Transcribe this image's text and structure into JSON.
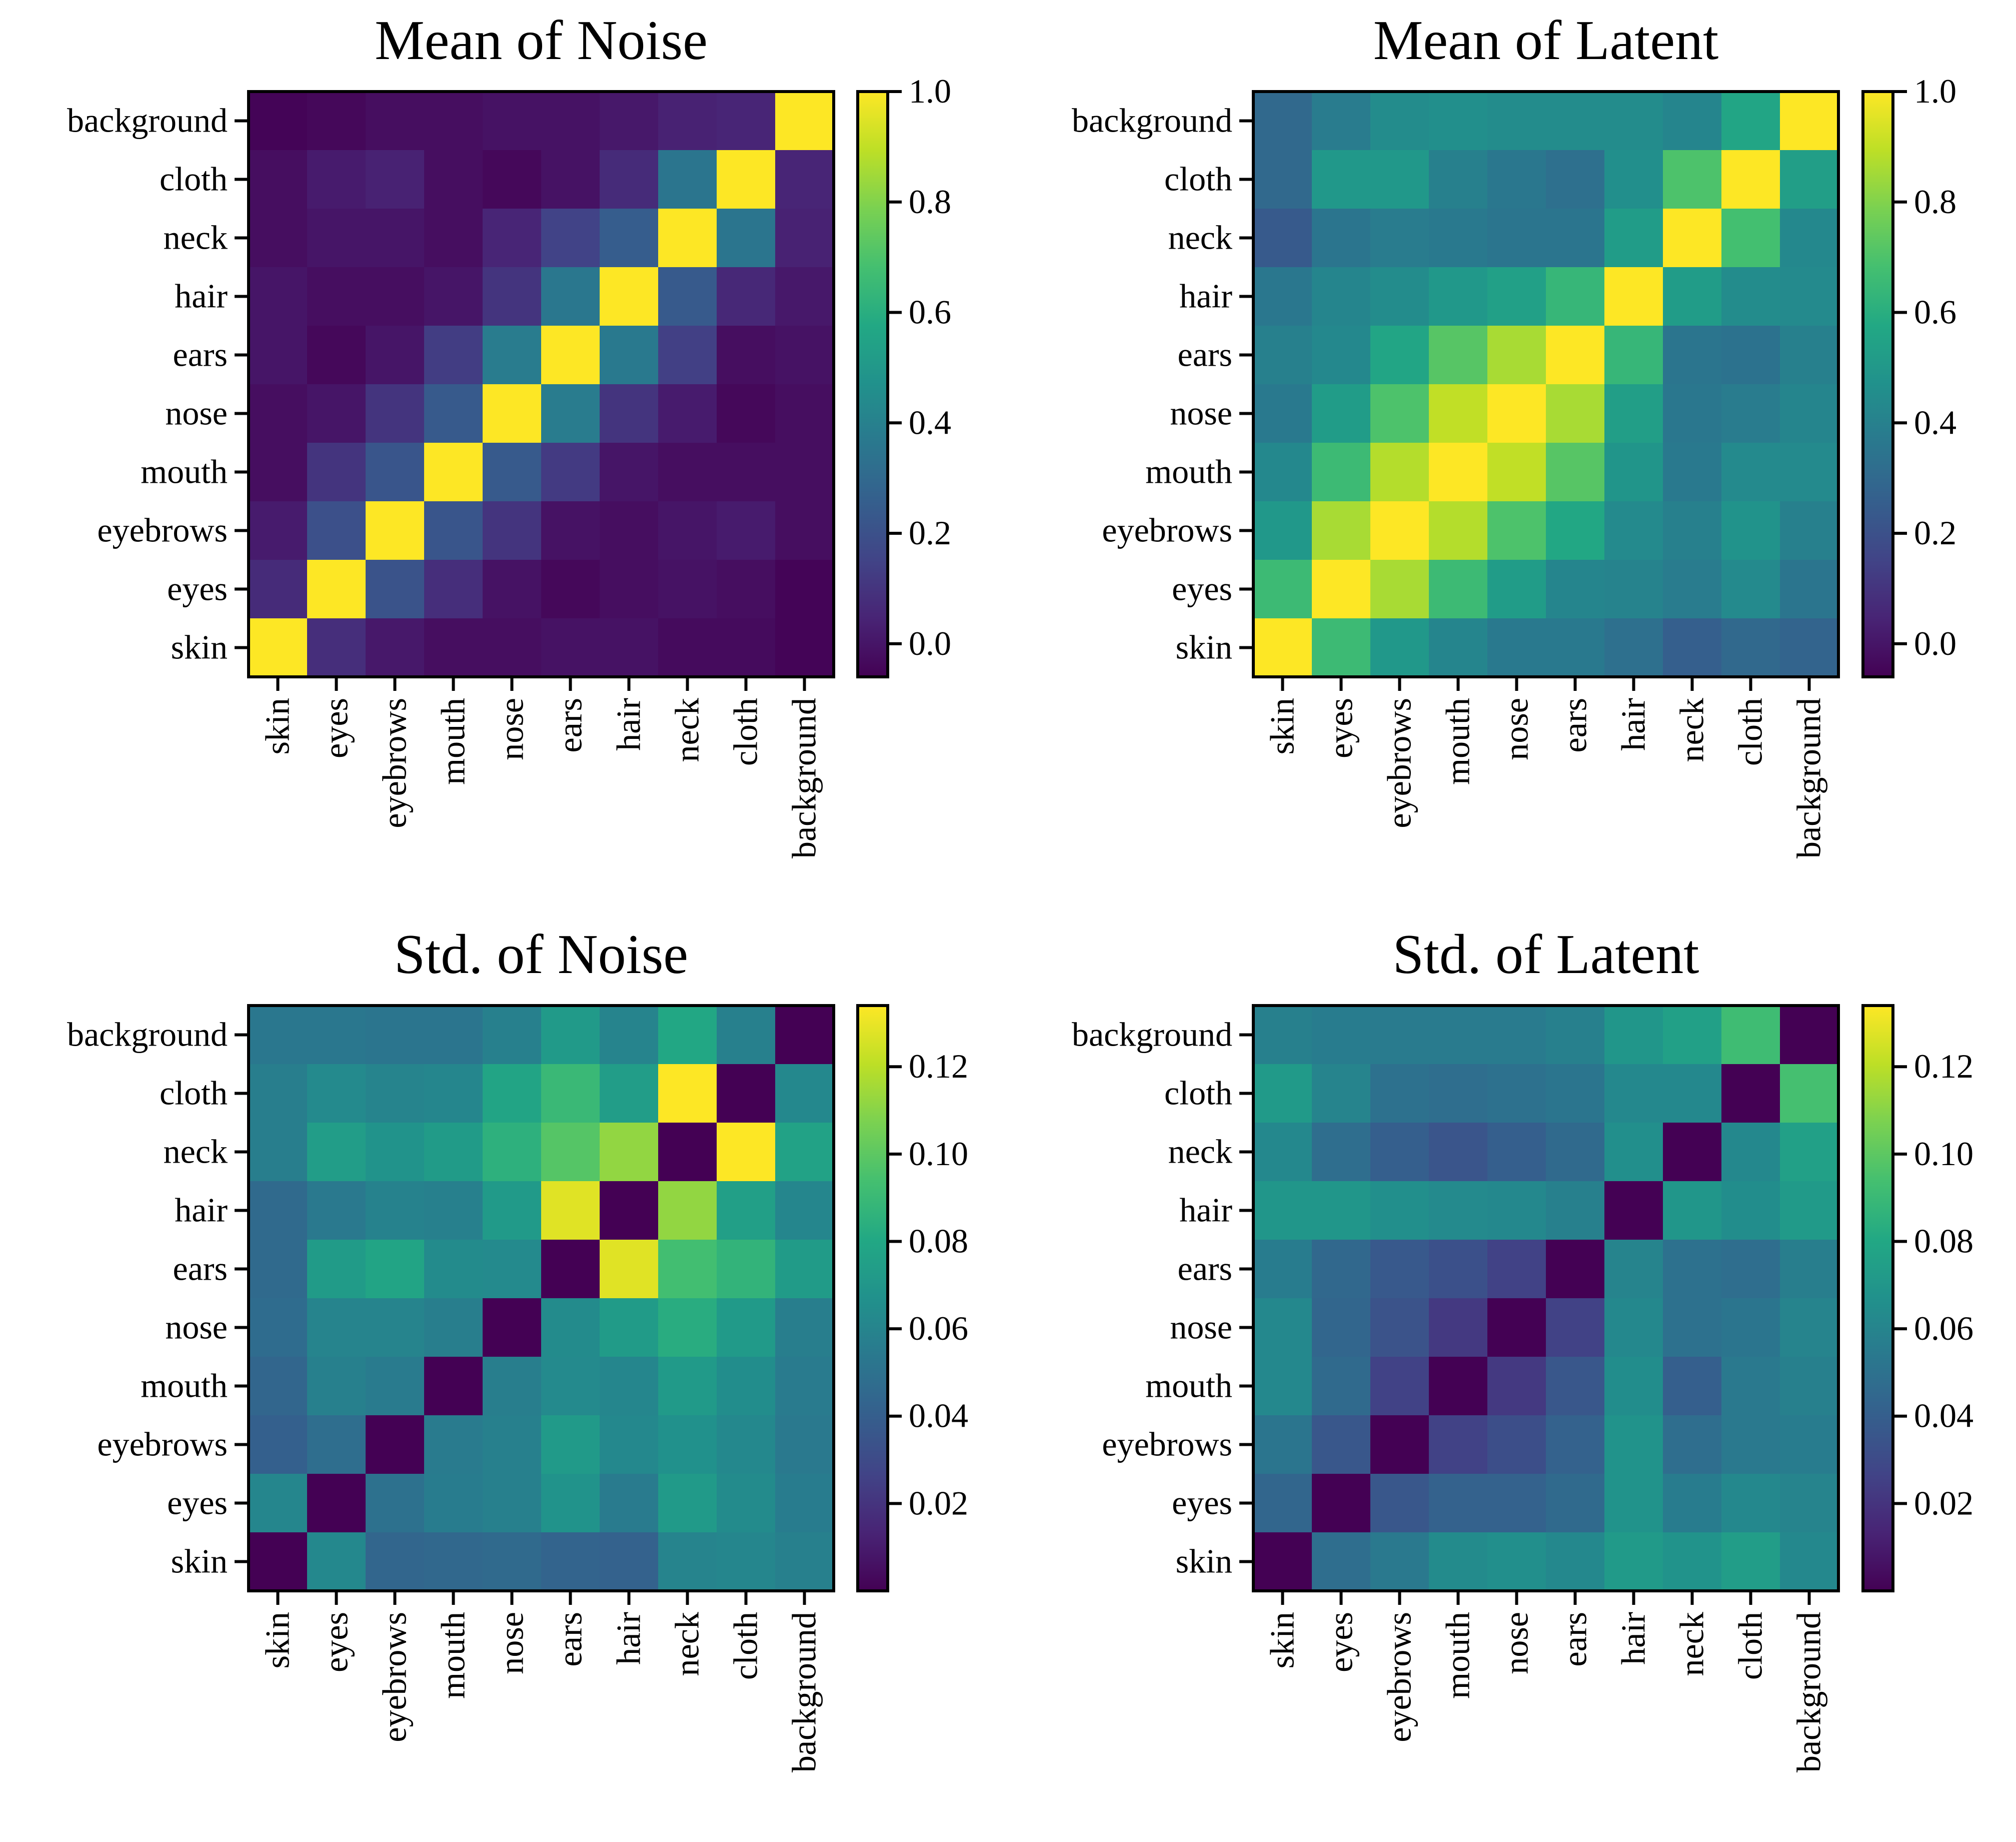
{
  "colormap": "viridis",
  "frame_color": "#000000",
  "categories": [
    "skin",
    "eyes",
    "eyebrows",
    "mouth",
    "nose",
    "ears",
    "hair",
    "neck",
    "cloth",
    "background"
  ],
  "chart_data": [
    {
      "type": "heatmap",
      "title": "Mean of Noise",
      "xlabel": "",
      "ylabel": "",
      "x_categories": [
        "skin",
        "eyes",
        "eyebrows",
        "mouth",
        "nose",
        "ears",
        "hair",
        "neck",
        "cloth",
        "background"
      ],
      "y_categories_top_to_bottom": [
        "background",
        "cloth",
        "neck",
        "hair",
        "ears",
        "nose",
        "mouth",
        "eyebrows",
        "eyes",
        "skin"
      ],
      "vmin": -0.06,
      "vmax": 1.0,
      "colorbar_ticks": [
        0.0,
        0.2,
        0.4,
        0.6,
        0.8,
        1.0
      ],
      "colorbar_labels": [
        "0.0",
        "0.2",
        "0.4",
        "0.6",
        "0.8",
        "1.0"
      ],
      "values": [
        [
          -0.05,
          -0.04,
          -0.02,
          -0.02,
          -0.01,
          -0.01,
          0.01,
          0.04,
          0.05,
          1.0
        ],
        [
          -0.02,
          0.02,
          0.04,
          -0.02,
          -0.04,
          -0.01,
          0.07,
          0.35,
          1.0,
          0.05
        ],
        [
          -0.02,
          0.0,
          0.0,
          -0.02,
          0.05,
          0.15,
          0.25,
          1.0,
          0.35,
          0.04
        ],
        [
          0.0,
          -0.02,
          -0.02,
          0.0,
          0.1,
          0.36,
          1.0,
          0.24,
          0.06,
          0.01
        ],
        [
          0.0,
          -0.04,
          0.0,
          0.13,
          0.38,
          1.0,
          0.37,
          0.14,
          -0.02,
          -0.01
        ],
        [
          -0.02,
          0.0,
          0.1,
          0.24,
          1.0,
          0.38,
          0.1,
          0.02,
          -0.04,
          -0.02
        ],
        [
          -0.02,
          0.1,
          0.22,
          1.0,
          0.24,
          0.12,
          0.0,
          -0.02,
          -0.02,
          -0.02
        ],
        [
          0.02,
          0.2,
          1.0,
          0.22,
          0.1,
          -0.01,
          -0.02,
          0.0,
          0.02,
          -0.02
        ],
        [
          0.07,
          1.0,
          0.21,
          0.08,
          -0.01,
          -0.04,
          -0.02,
          -0.01,
          -0.02,
          -0.05
        ],
        [
          1.0,
          0.08,
          0.01,
          -0.02,
          -0.02,
          -0.01,
          -0.01,
          -0.03,
          -0.03,
          -0.05
        ]
      ]
    },
    {
      "type": "heatmap",
      "title": "Mean of Latent",
      "xlabel": "",
      "ylabel": "",
      "x_categories": [
        "skin",
        "eyes",
        "eyebrows",
        "mouth",
        "nose",
        "ears",
        "hair",
        "neck",
        "cloth",
        "background"
      ],
      "y_categories_top_to_bottom": [
        "background",
        "cloth",
        "neck",
        "hair",
        "ears",
        "nose",
        "mouth",
        "eyebrows",
        "eyes",
        "skin"
      ],
      "vmin": -0.06,
      "vmax": 1.0,
      "colorbar_ticks": [
        0.0,
        0.2,
        0.4,
        0.6,
        0.8,
        1.0
      ],
      "colorbar_labels": [
        "0.0",
        "0.2",
        "0.4",
        "0.6",
        "0.8",
        "1.0"
      ],
      "values": [
        [
          0.3,
          0.38,
          0.45,
          0.46,
          0.45,
          0.45,
          0.45,
          0.42,
          0.56,
          1.0
        ],
        [
          0.3,
          0.5,
          0.5,
          0.4,
          0.36,
          0.33,
          0.46,
          0.7,
          1.0,
          0.53
        ],
        [
          0.24,
          0.35,
          0.38,
          0.37,
          0.35,
          0.35,
          0.52,
          1.0,
          0.68,
          0.43
        ],
        [
          0.36,
          0.42,
          0.45,
          0.5,
          0.54,
          0.64,
          1.0,
          0.52,
          0.45,
          0.44
        ],
        [
          0.4,
          0.43,
          0.56,
          0.72,
          0.86,
          1.0,
          0.64,
          0.35,
          0.34,
          0.4
        ],
        [
          0.37,
          0.52,
          0.7,
          0.9,
          1.0,
          0.86,
          0.53,
          0.36,
          0.38,
          0.42
        ],
        [
          0.43,
          0.66,
          0.88,
          1.0,
          0.9,
          0.72,
          0.49,
          0.37,
          0.44,
          0.44
        ],
        [
          0.5,
          0.86,
          1.0,
          0.88,
          0.7,
          0.57,
          0.44,
          0.4,
          0.48,
          0.4
        ],
        [
          0.66,
          1.0,
          0.86,
          0.66,
          0.52,
          0.42,
          0.41,
          0.38,
          0.44,
          0.35
        ],
        [
          1.0,
          0.66,
          0.5,
          0.42,
          0.37,
          0.37,
          0.33,
          0.26,
          0.3,
          0.28
        ]
      ]
    },
    {
      "type": "heatmap",
      "title": "Std. of Noise",
      "xlabel": "",
      "ylabel": "",
      "x_categories": [
        "skin",
        "eyes",
        "eyebrows",
        "mouth",
        "nose",
        "ears",
        "hair",
        "neck",
        "cloth",
        "background"
      ],
      "y_categories_top_to_bottom": [
        "background",
        "cloth",
        "neck",
        "hair",
        "ears",
        "nose",
        "mouth",
        "eyebrows",
        "eyes",
        "skin"
      ],
      "vmin": 0.0,
      "vmax": 0.134,
      "colorbar_ticks": [
        0.02,
        0.04,
        0.06,
        0.08,
        0.1,
        0.12
      ],
      "colorbar_labels": [
        "0.02",
        "0.04",
        "0.06",
        "0.08",
        "0.10",
        "0.12"
      ],
      "values": [
        [
          0.053,
          0.053,
          0.052,
          0.052,
          0.058,
          0.072,
          0.06,
          0.08,
          0.058,
          0.0
        ],
        [
          0.057,
          0.063,
          0.06,
          0.061,
          0.078,
          0.09,
          0.074,
          0.134,
          0.0,
          0.062
        ],
        [
          0.057,
          0.074,
          0.068,
          0.073,
          0.085,
          0.098,
          0.112,
          0.0,
          0.134,
          0.077
        ],
        [
          0.046,
          0.054,
          0.059,
          0.058,
          0.072,
          0.128,
          0.0,
          0.112,
          0.075,
          0.061
        ],
        [
          0.046,
          0.073,
          0.078,
          0.064,
          0.063,
          0.0,
          0.128,
          0.093,
          0.087,
          0.073
        ],
        [
          0.047,
          0.06,
          0.06,
          0.057,
          0.0,
          0.064,
          0.073,
          0.083,
          0.072,
          0.057
        ],
        [
          0.044,
          0.058,
          0.055,
          0.0,
          0.057,
          0.063,
          0.061,
          0.072,
          0.065,
          0.055
        ],
        [
          0.041,
          0.048,
          0.0,
          0.055,
          0.058,
          0.072,
          0.062,
          0.067,
          0.062,
          0.054
        ],
        [
          0.061,
          0.0,
          0.05,
          0.056,
          0.058,
          0.068,
          0.055,
          0.072,
          0.064,
          0.056
        ],
        [
          0.0,
          0.062,
          0.044,
          0.045,
          0.046,
          0.043,
          0.042,
          0.06,
          0.061,
          0.058
        ]
      ]
    },
    {
      "type": "heatmap",
      "title": "Std. of Latent",
      "xlabel": "",
      "ylabel": "",
      "x_categories": [
        "skin",
        "eyes",
        "eyebrows",
        "mouth",
        "nose",
        "ears",
        "hair",
        "neck",
        "cloth",
        "background"
      ],
      "y_categories_top_to_bottom": [
        "background",
        "cloth",
        "neck",
        "hair",
        "ears",
        "nose",
        "mouth",
        "eyebrows",
        "eyes",
        "skin"
      ],
      "vmin": 0.0,
      "vmax": 0.134,
      "colorbar_ticks": [
        0.02,
        0.04,
        0.06,
        0.08,
        0.1,
        0.12
      ],
      "colorbar_labels": [
        "0.02",
        "0.04",
        "0.06",
        "0.08",
        "0.10",
        "0.12"
      ],
      "values": [
        [
          0.058,
          0.056,
          0.055,
          0.055,
          0.055,
          0.058,
          0.07,
          0.076,
          0.092,
          0.0
        ],
        [
          0.072,
          0.06,
          0.05,
          0.048,
          0.05,
          0.052,
          0.062,
          0.062,
          0.0,
          0.094
        ],
        [
          0.062,
          0.048,
          0.04,
          0.035,
          0.04,
          0.046,
          0.066,
          0.0,
          0.062,
          0.076
        ],
        [
          0.07,
          0.07,
          0.066,
          0.063,
          0.062,
          0.058,
          0.0,
          0.07,
          0.065,
          0.072
        ],
        [
          0.056,
          0.045,
          0.037,
          0.033,
          0.026,
          0.0,
          0.06,
          0.05,
          0.048,
          0.057
        ],
        [
          0.062,
          0.044,
          0.034,
          0.022,
          0.0,
          0.026,
          0.062,
          0.05,
          0.052,
          0.06
        ],
        [
          0.062,
          0.046,
          0.026,
          0.0,
          0.022,
          0.036,
          0.065,
          0.04,
          0.054,
          0.058
        ],
        [
          0.052,
          0.036,
          0.0,
          0.026,
          0.032,
          0.042,
          0.068,
          0.048,
          0.054,
          0.056
        ],
        [
          0.044,
          0.0,
          0.036,
          0.042,
          0.042,
          0.046,
          0.068,
          0.056,
          0.062,
          0.06
        ],
        [
          0.0,
          0.048,
          0.054,
          0.064,
          0.066,
          0.062,
          0.072,
          0.068,
          0.074,
          0.062
        ]
      ]
    }
  ]
}
